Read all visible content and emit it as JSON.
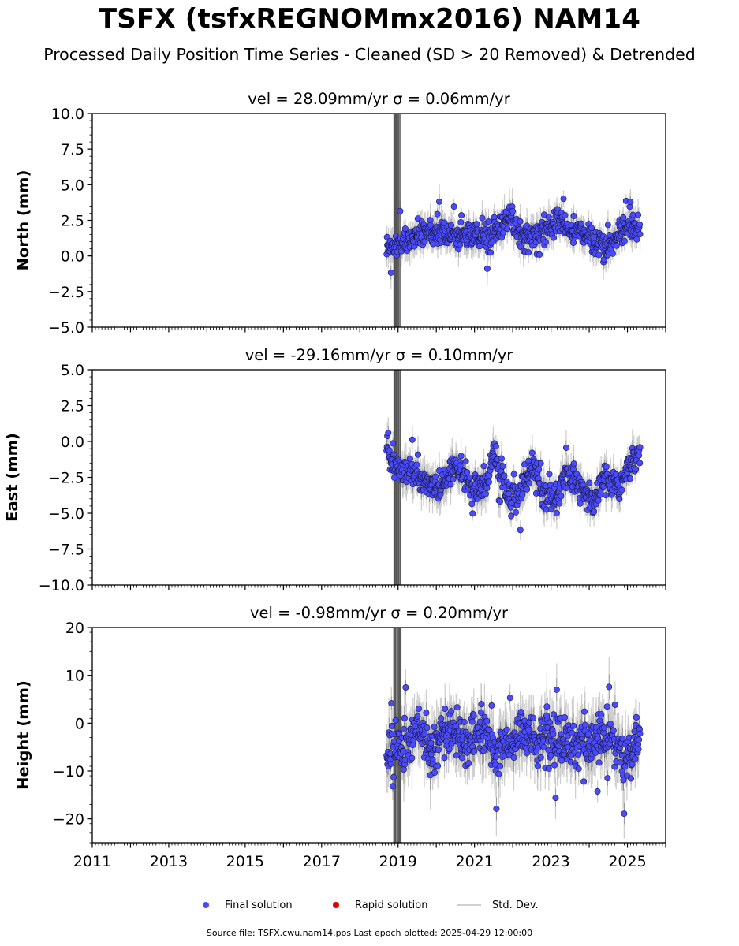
{
  "header": {
    "title": "TSFX (tsfxREGNOMmx2016) NAM14",
    "subtitle": "Processed Daily Position Time Series - Cleaned (SD > 20 Removed) & Detrended"
  },
  "legend": {
    "items": [
      {
        "label": "Final solution",
        "color": "#4a4aff"
      },
      {
        "label": "Rapid solution",
        "color": "#e00000"
      },
      {
        "label": "Std. Dev.",
        "color": "#cfcfcf"
      }
    ]
  },
  "footer": {
    "source": "Source file: TSFX.cwu.nam14.pos  Last epoch plotted: 2025-04-29 12:00:00"
  },
  "colors": {
    "point_fill": "#4a4aff",
    "point_edge": "#1a1a40",
    "sd_dark": "#555555",
    "sd_light": "#cfcfcf"
  },
  "chart_data": [
    {
      "type": "scatter",
      "title": "vel = 28.09mm/yr   σ = 0.06mm/yr",
      "ylabel": "North (mm)",
      "xlim": [
        2011.0,
        2026.0
      ],
      "ylim": [
        -5.0,
        10.0
      ],
      "yticks": [
        -5.0,
        -2.5,
        0.0,
        2.5,
        5.0,
        7.5,
        10.0
      ],
      "ytick_labels": [
        "−5.0",
        "−2.5",
        "0.0",
        "2.5",
        "5.0",
        "7.5",
        "10.0"
      ],
      "xticks": [
        2011,
        2013,
        2015,
        2017,
        2019,
        2021,
        2023,
        2025
      ],
      "series": [
        {
          "name": "Final solution",
          "x_range": [
            2018.7,
            2025.33
          ],
          "mean_path": [
            [
              2018.7,
              0.6
            ],
            [
              2019.2,
              0.9
            ],
            [
              2019.6,
              1.6
            ],
            [
              2020.0,
              1.8
            ],
            [
              2020.5,
              1.3
            ],
            [
              2021.0,
              1.4
            ],
            [
              2021.4,
              1.2
            ],
            [
              2021.9,
              2.8
            ],
            [
              2022.3,
              1.2
            ],
            [
              2022.8,
              1.7
            ],
            [
              2023.2,
              2.5
            ],
            [
              2023.6,
              1.6
            ],
            [
              2024.0,
              1.3
            ],
            [
              2024.5,
              0.5
            ],
            [
              2024.9,
              1.9
            ],
            [
              2025.33,
              2.1
            ]
          ],
          "spread": 0.8
        }
      ]
    },
    {
      "type": "scatter",
      "title": "vel = -29.16mm/yr   σ = 0.10mm/yr",
      "ylabel": "East (mm)",
      "xlim": [
        2011.0,
        2026.0
      ],
      "ylim": [
        -10.0,
        5.0
      ],
      "yticks": [
        -10.0,
        -7.5,
        -5.0,
        -2.5,
        0.0,
        2.5,
        5.0
      ],
      "ytick_labels": [
        "−10.0",
        "−7.5",
        "−5.0",
        "−2.5",
        "0.0",
        "2.5",
        "5.0"
      ],
      "xticks": [
        2011,
        2013,
        2015,
        2017,
        2019,
        2021,
        2023,
        2025
      ],
      "series": [
        {
          "name": "Final solution",
          "x_range": [
            2018.7,
            2025.33
          ],
          "mean_path": [
            [
              2018.7,
              -0.6
            ],
            [
              2019.0,
              -2.0
            ],
            [
              2019.6,
              -2.5
            ],
            [
              2020.1,
              -3.3
            ],
            [
              2020.5,
              -1.5
            ],
            [
              2020.9,
              -3.5
            ],
            [
              2021.3,
              -3.0
            ],
            [
              2021.5,
              -0.7
            ],
            [
              2021.8,
              -3.5
            ],
            [
              2022.1,
              -4.2
            ],
            [
              2022.5,
              -1.6
            ],
            [
              2022.8,
              -3.6
            ],
            [
              2023.1,
              -4.2
            ],
            [
              2023.4,
              -2.2
            ],
            [
              2023.8,
              -3.2
            ],
            [
              2024.1,
              -4.3
            ],
            [
              2024.4,
              -2.6
            ],
            [
              2024.8,
              -3.3
            ],
            [
              2025.0,
              -1.8
            ],
            [
              2025.33,
              -0.8
            ]
          ],
          "spread": 0.9
        }
      ]
    },
    {
      "type": "scatter",
      "title": "vel = -0.98mm/yr   σ = 0.20mm/yr",
      "ylabel": "Height (mm)",
      "xlim": [
        2011.0,
        2026.0
      ],
      "ylim": [
        -25.0,
        20.0
      ],
      "yticks": [
        -20,
        -10,
        0,
        10,
        20
      ],
      "ytick_labels": [
        "−20",
        "−10",
        "0",
        "10",
        "20"
      ],
      "xticks": [
        2011,
        2013,
        2015,
        2017,
        2019,
        2021,
        2023,
        2025
      ],
      "xtick_labels": [
        "2011",
        "2013",
        "2015",
        "2017",
        "2019",
        "2021",
        "2023",
        "2025"
      ],
      "series": [
        {
          "name": "Final solution",
          "x_range": [
            2018.7,
            2025.33
          ],
          "mean_path": [
            [
              2018.7,
              -6
            ],
            [
              2019.2,
              -5
            ],
            [
              2019.5,
              0
            ],
            [
              2019.9,
              -6
            ],
            [
              2020.4,
              -1
            ],
            [
              2020.8,
              -5
            ],
            [
              2021.2,
              -2
            ],
            [
              2021.6,
              -6
            ],
            [
              2022.0,
              -3
            ],
            [
              2022.4,
              -2
            ],
            [
              2022.8,
              -4
            ],
            [
              2023.2,
              -4
            ],
            [
              2023.6,
              -5
            ],
            [
              2024.0,
              -4
            ],
            [
              2024.5,
              -3
            ],
            [
              2024.9,
              -8
            ],
            [
              2025.33,
              -4
            ]
          ],
          "spread": 4.5
        }
      ]
    }
  ]
}
